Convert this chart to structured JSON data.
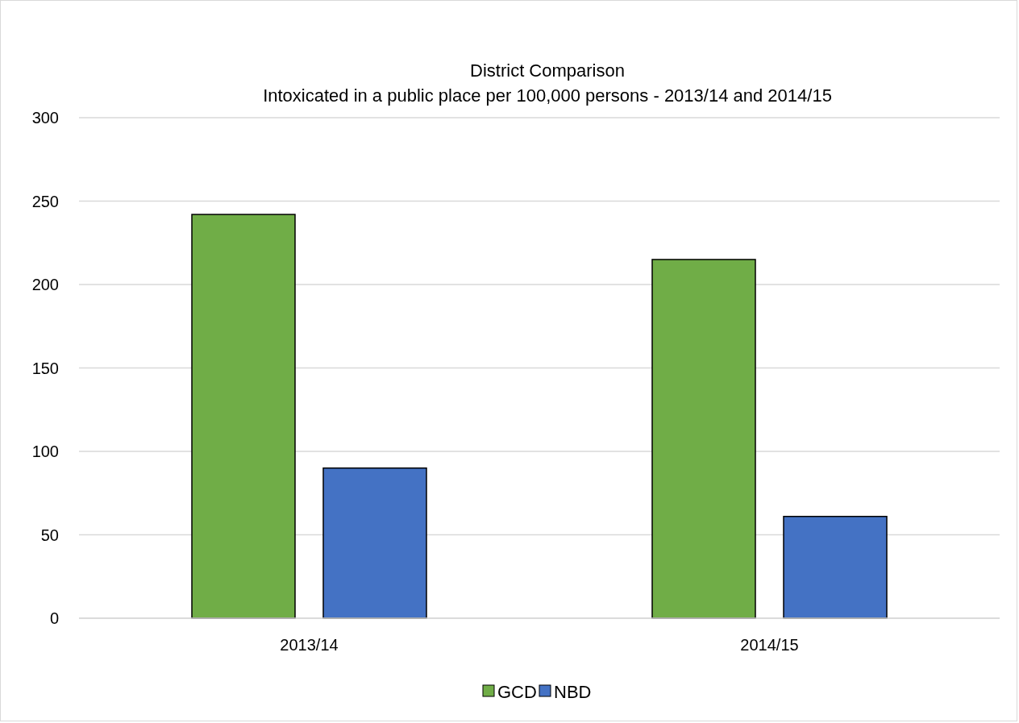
{
  "chart_data": {
    "type": "bar",
    "title": "District Comparison",
    "subtitle": "Intoxicated in a public place per 100,000 persons - 2013/14 and 2014/15",
    "categories": [
      "2013/14",
      "2014/15"
    ],
    "series": [
      {
        "name": "GCD",
        "color": "#70ad47",
        "values": [
          242,
          215
        ]
      },
      {
        "name": "NBD",
        "color": "#4472c4",
        "values": [
          90,
          61
        ]
      }
    ],
    "ylim": [
      0,
      300
    ],
    "yticks": [
      0,
      50,
      100,
      150,
      200,
      250,
      300
    ],
    "grid": "y",
    "legend": "bottom"
  }
}
